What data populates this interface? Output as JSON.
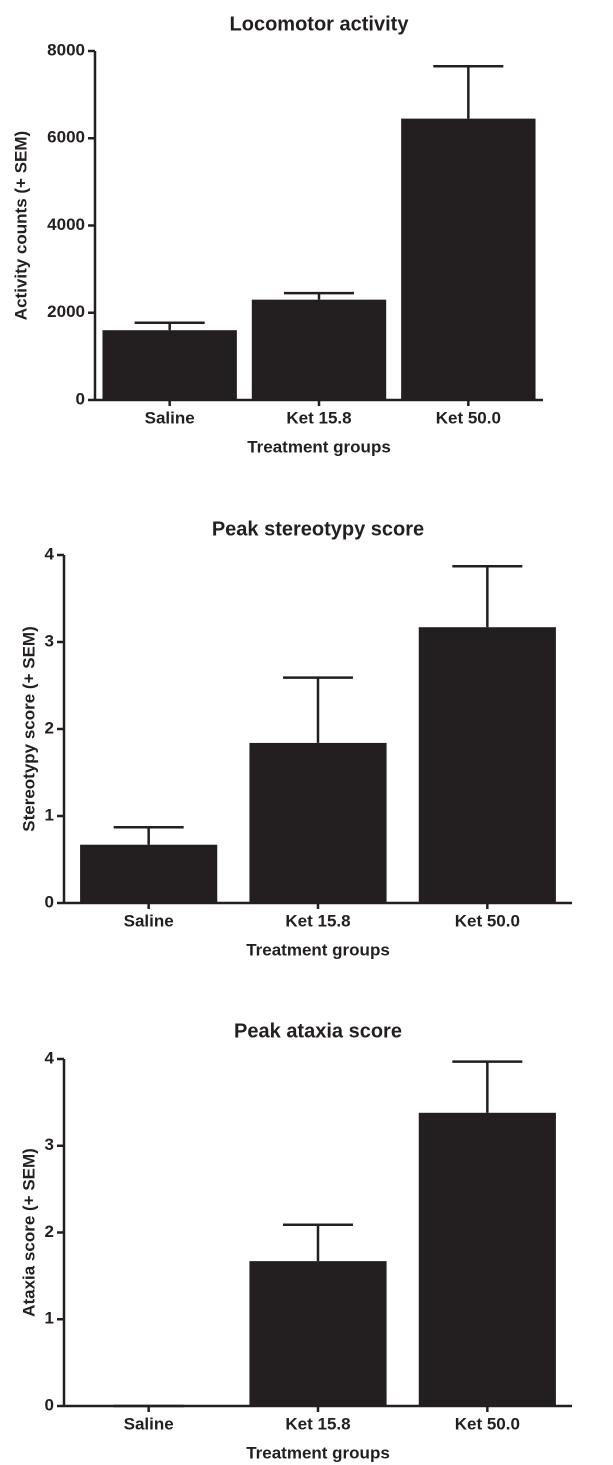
{
  "chart_data": [
    {
      "type": "bar",
      "title": "Locomotor activity",
      "x_label": "Treatment groups",
      "y_label": "Activity counts (+ SEM)",
      "categories": [
        "Saline",
        "Ket 15.8",
        "Ket 50.0"
      ],
      "values": [
        1600,
        2300,
        6450
      ],
      "errors": [
        170,
        150,
        1200
      ],
      "color": "#231f20",
      "ylim": [
        0,
        8000
      ],
      "yticks": [
        0,
        2000,
        4000,
        6000,
        8000
      ]
    },
    {
      "type": "bar",
      "title": "Peak stereotypy score",
      "x_label": "Treatment groups",
      "y_label": "Stereotypy score (+ SEM)",
      "categories": [
        "Saline",
        "Ket 15.8",
        "Ket 50.0"
      ],
      "values": [
        0.67,
        1.84,
        3.17
      ],
      "errors": [
        0.2,
        0.75,
        0.7
      ],
      "color": "#231f20",
      "ylim": [
        0,
        4
      ],
      "yticks": [
        0,
        1,
        2,
        3,
        4
      ]
    },
    {
      "type": "bar",
      "title": "Peak ataxia score",
      "x_label": "Treatment groups",
      "y_label": "Ataxia score (+ SEM)",
      "categories": [
        "Saline",
        "Ket 15.8",
        "Ket 50.0"
      ],
      "values": [
        0,
        1.67,
        3.38
      ],
      "errors": [
        0,
        0.42,
        0.59
      ],
      "color": "#231f20",
      "ylim": [
        0,
        4
      ],
      "yticks": [
        0,
        1,
        2,
        3,
        4
      ]
    }
  ]
}
